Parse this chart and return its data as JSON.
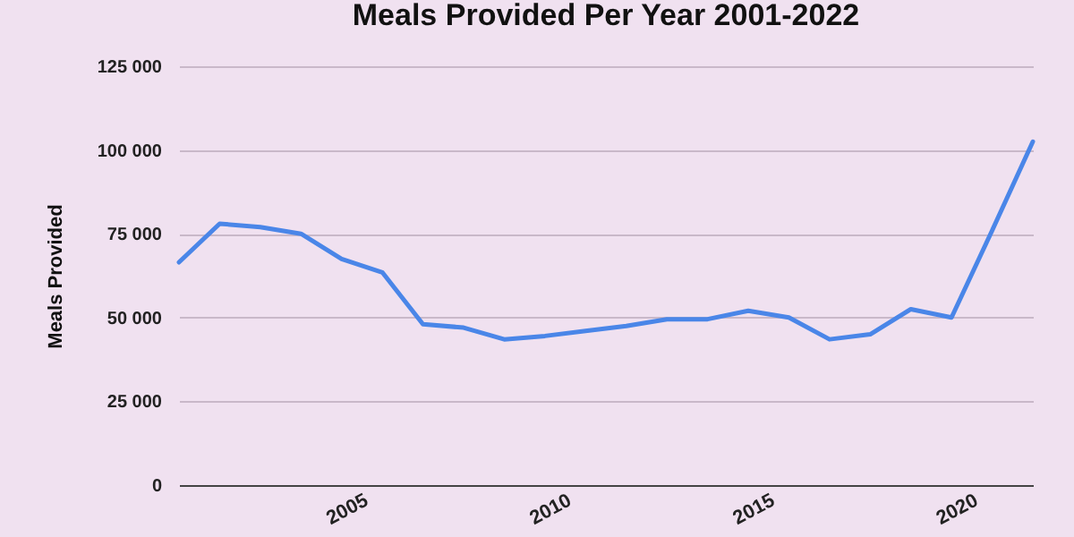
{
  "chart_data": {
    "type": "line",
    "title": "Meals Provided Per Year 2001-2022",
    "ylabel": "Meals Provided",
    "x": [
      2001,
      2002,
      2003,
      2004,
      2005,
      2006,
      2007,
      2008,
      2009,
      2010,
      2011,
      2012,
      2013,
      2014,
      2015,
      2016,
      2017,
      2018,
      2019,
      2020,
      2021,
      2022
    ],
    "series": [
      {
        "color": "#4a86e8",
        "values": [
          66500,
          78000,
          77000,
          75000,
          67500,
          63500,
          48000,
          47000,
          43500,
          44500,
          46000,
          47500,
          49500,
          49500,
          52000,
          50000,
          43500,
          45000,
          52500,
          50000,
          76000,
          102500
        ]
      }
    ],
    "xlim": [
      2001,
      2022
    ],
    "xticks": [
      2005,
      2010,
      2015,
      2020
    ],
    "ylim": [
      0,
      125000
    ],
    "yticks": [
      {
        "value": 0,
        "label": "0"
      },
      {
        "value": 25000,
        "label": "25 000"
      },
      {
        "value": 50000,
        "label": "50 000"
      },
      {
        "value": 75000,
        "label": "75 000"
      },
      {
        "value": 100000,
        "label": "100 000"
      },
      {
        "value": 125000,
        "label": "125 000"
      }
    ],
    "grid": "y",
    "legend": false,
    "marker": "none",
    "line_style": "solid"
  }
}
